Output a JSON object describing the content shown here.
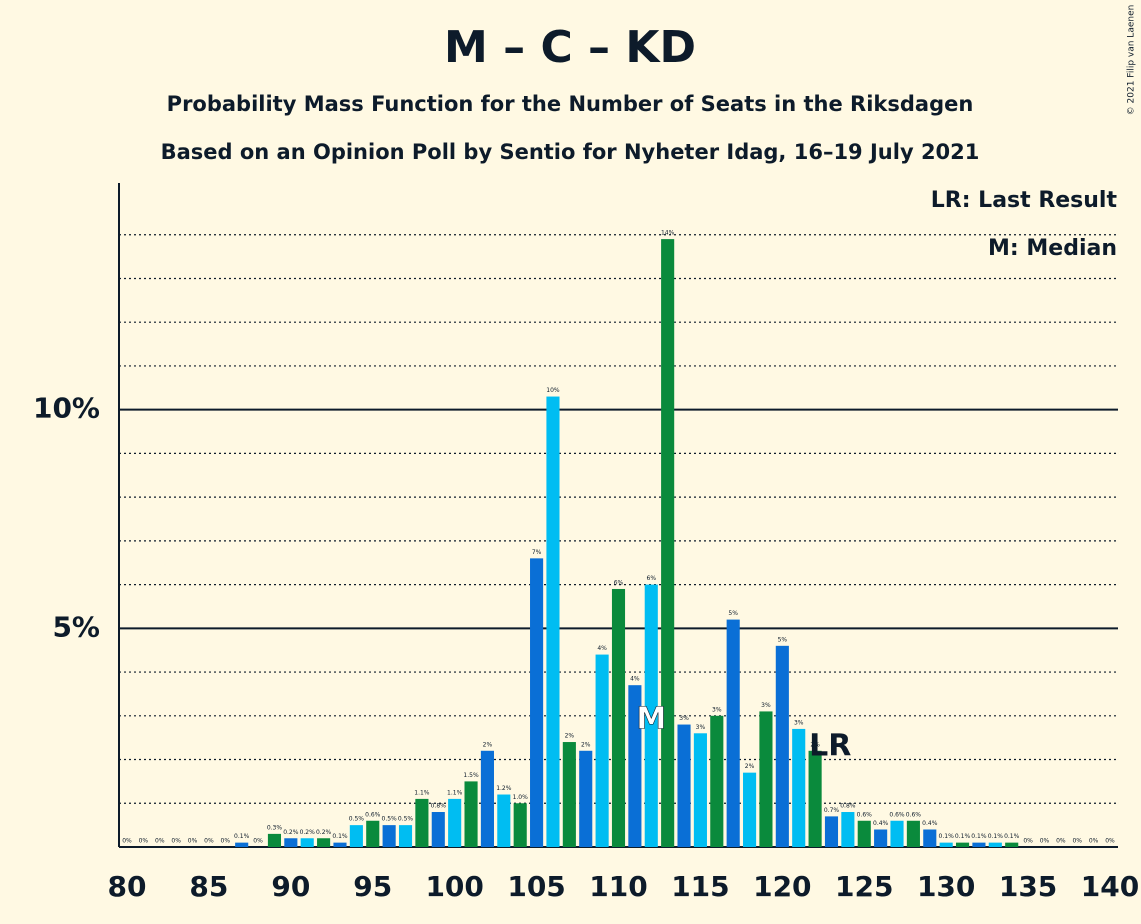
{
  "chart_data": {
    "type": "bar",
    "title": "M – C – KD",
    "subtitle": "Probability Mass Function for the Number of Seats in the Riksdagen",
    "subtitle2": "Based on an Opinion Poll by Sentio for Nyheter Idag, 16–19 July 2021",
    "copyright": "© 2021 Filip van Laenen",
    "x": [
      80,
      81,
      82,
      83,
      84,
      85,
      86,
      87,
      88,
      89,
      90,
      91,
      92,
      93,
      94,
      95,
      96,
      97,
      98,
      99,
      100,
      101,
      102,
      103,
      104,
      105,
      106,
      107,
      108,
      109,
      110,
      111,
      112,
      113,
      114,
      115,
      116,
      117,
      118,
      119,
      120,
      121,
      122,
      123,
      124,
      125,
      126,
      127,
      128,
      129,
      130,
      131,
      132,
      133,
      134,
      135,
      136,
      137,
      138,
      139,
      140
    ],
    "values": [
      0,
      0,
      0,
      0,
      0,
      0,
      0,
      0.1,
      0,
      0.3,
      0.2,
      0.2,
      0.2,
      0.1,
      0.5,
      0.6,
      0.5,
      0.5,
      1.1,
      0.8,
      1.1,
      1.5,
      2.2,
      1.2,
      1.0,
      6.6,
      10.3,
      2.4,
      2.2,
      4.4,
      5.9,
      3.7,
      6.0,
      13.9,
      2.8,
      2.6,
      3.0,
      5.2,
      1.7,
      3.1,
      4.6,
      2.7,
      2.2,
      0.7,
      0.8,
      0.6,
      0.4,
      0.6,
      0.6,
      0.4,
      0.1,
      0.1,
      0.1,
      0.1,
      0.1,
      0,
      0,
      0,
      0,
      0,
      0
    ],
    "value_labels": [
      "0%",
      "0%",
      "0%",
      "0%",
      "0%",
      "0%",
      "0%",
      "0.1%",
      "0%",
      "0.3%",
      "0.2%",
      "0.2%",
      "0.2%",
      "0.1%",
      "0.5%",
      "0.6%",
      "0.5%",
      "0.5%",
      "1.1%",
      "0.8%",
      "1.1%",
      "1.5%",
      "2%",
      "1.2%",
      "1.0%",
      "7%",
      "10%",
      "2%",
      "2%",
      "4%",
      "6%",
      "4%",
      "6%",
      "14%",
      "3%",
      "3%",
      "3%",
      "5%",
      "2%",
      "3%",
      "5%",
      "3%",
      "2%",
      "0.7%",
      "0.8%",
      "0.6%",
      "0.4%",
      "0.6%",
      "0.6%",
      "0.4%",
      "0.1%",
      "0.1%",
      "0.1%",
      "0.1%",
      "0.1%",
      "0%",
      "0%",
      "0%",
      "0%",
      "0%",
      "0%"
    ],
    "colors": [
      "#0a6fd6",
      "#00bdf2",
      "#0a8a3c"
    ],
    "xlim": [
      80,
      140
    ],
    "xticks": [
      80,
      85,
      90,
      95,
      100,
      105,
      110,
      115,
      120,
      125,
      130,
      135,
      140
    ],
    "ylim": [
      0,
      15
    ],
    "yticks": [
      {
        "value": 5,
        "label": "5%"
      },
      {
        "value": 10,
        "label": "10%"
      }
    ],
    "minor_yticks": [
      1,
      2,
      3,
      4,
      6,
      7,
      8,
      9,
      11,
      12,
      13,
      14
    ],
    "median": {
      "x": 112,
      "label": "M"
    },
    "last_result": {
      "x": 122,
      "label": "LR"
    },
    "legend": [
      "LR: Last Result",
      "M: Median"
    ]
  }
}
